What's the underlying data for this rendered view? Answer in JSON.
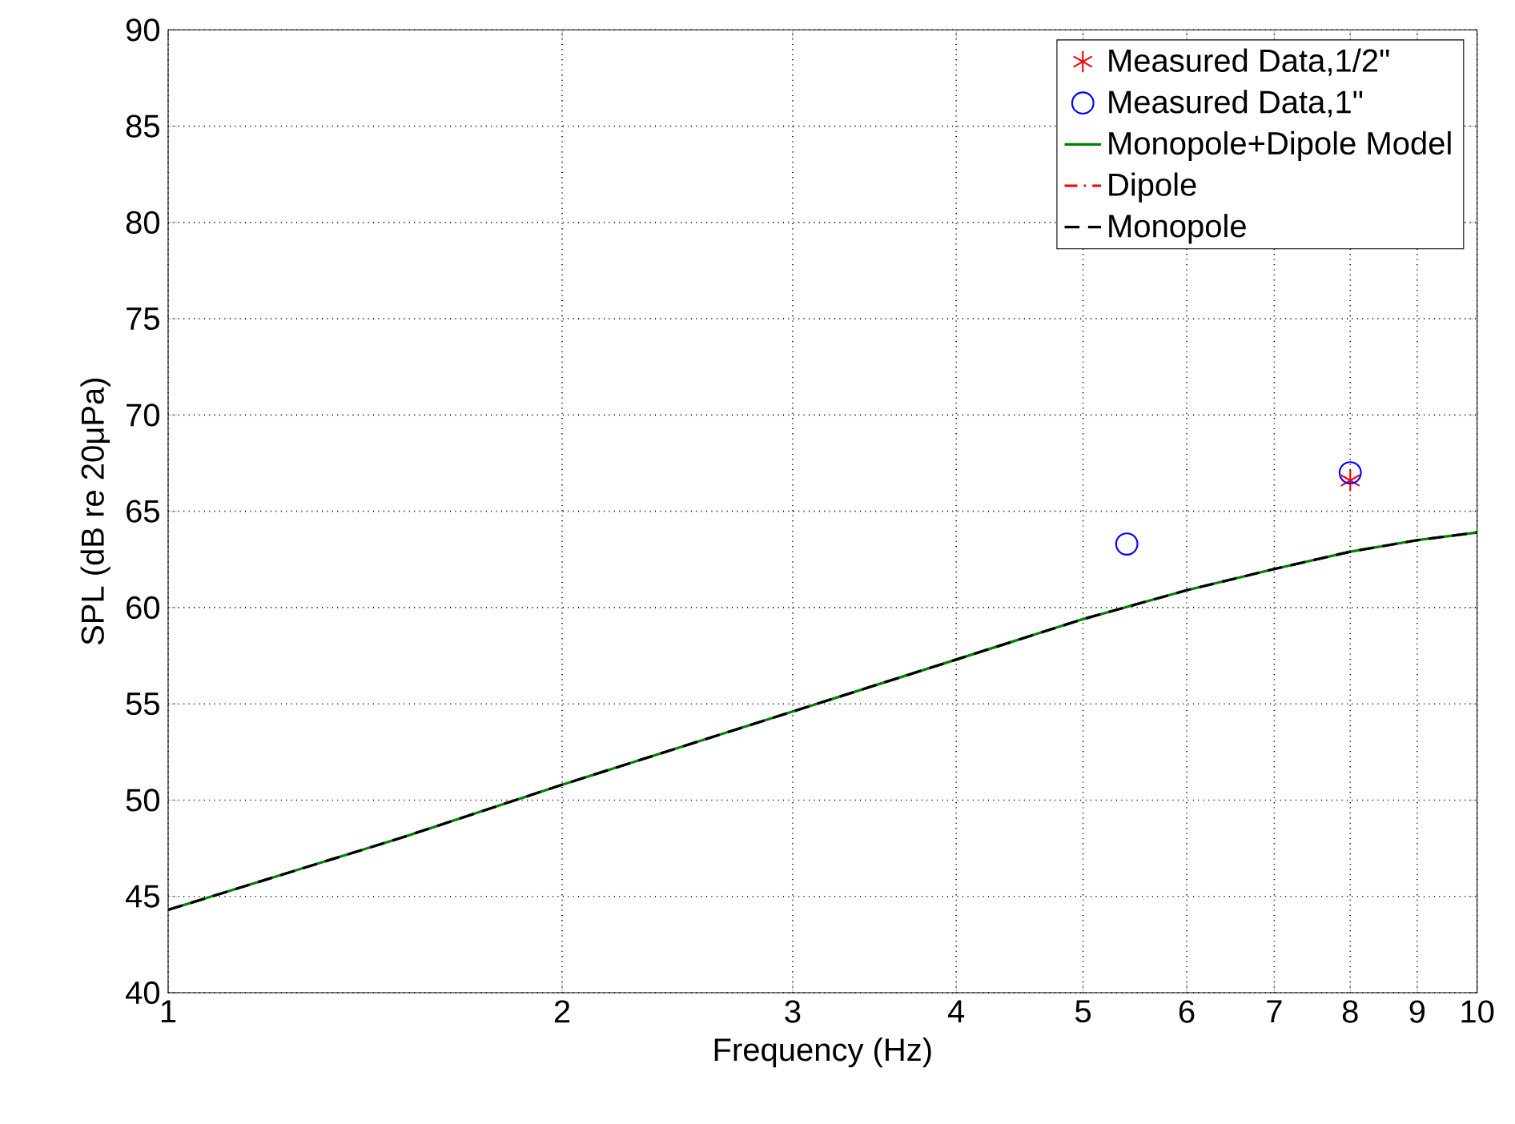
{
  "chart_data": {
    "type": "line",
    "xlabel": "Frequency (Hz)",
    "ylabel": "SPL (dB re 20μPa)",
    "log": "x",
    "xlim": [
      1,
      10
    ],
    "xticks": [
      1,
      2,
      3,
      4,
      5,
      6,
      7,
      8,
      9,
      10
    ],
    "ylim": [
      40,
      90
    ],
    "yticks": [
      40,
      45,
      50,
      55,
      60,
      65,
      70,
      75,
      80,
      85,
      90
    ],
    "grid": true,
    "legend": "top right",
    "series": [
      {
        "name": "Measured Data,1/2\"",
        "type": "scatter",
        "color": "#ff0000",
        "marker": "cross",
        "x": [
          8
        ],
        "values": [
          66.6
        ]
      },
      {
        "name": "Measured Data,1\"",
        "type": "scatter",
        "color": "#0000ff",
        "marker": "circle",
        "x": [
          5.4,
          8
        ],
        "values": [
          63.3,
          67.0
        ]
      },
      {
        "name": "Monopole+Dipole Model",
        "color": "#008000",
        "line_style": "solid",
        "x": [
          1,
          1.5,
          2,
          3,
          4,
          5,
          6,
          7,
          8,
          9,
          10
        ],
        "values": [
          44.3,
          48.0,
          50.8,
          54.6,
          57.3,
          59.4,
          60.9,
          62.0,
          62.9,
          63.5,
          63.9
        ]
      },
      {
        "name": "Dipole",
        "color": "#ff0000",
        "line_style": "dashdot"
      },
      {
        "name": "Monopole",
        "color": "#000000",
        "line_style": "dashed",
        "x": [
          1,
          1.5,
          2,
          3,
          4,
          5,
          6,
          7,
          8,
          9,
          10
        ],
        "values": [
          44.3,
          48.0,
          50.8,
          54.6,
          57.3,
          59.4,
          60.9,
          62.0,
          62.9,
          63.5,
          63.9
        ]
      }
    ]
  }
}
